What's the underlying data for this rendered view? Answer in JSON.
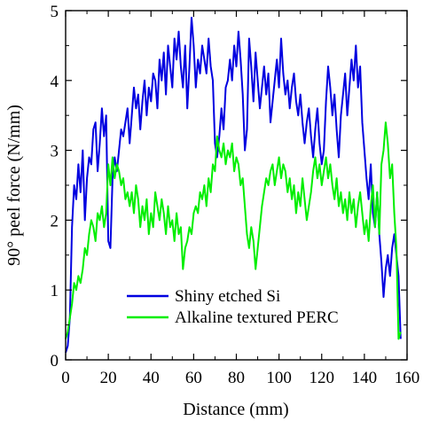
{
  "chart_data": {
    "type": "line",
    "title": "",
    "xlabel": "Distance (mm)",
    "ylabel": "90° peel force (N/mm)",
    "xlim": [
      0,
      160
    ],
    "ylim": [
      0,
      5
    ],
    "xticks": [
      0,
      20,
      40,
      60,
      80,
      100,
      120,
      140,
      160
    ],
    "yticks": [
      0,
      1,
      2,
      3,
      4,
      5
    ],
    "grid": false,
    "legend_position": "lower-center",
    "series": [
      {
        "name": "Shiny etched Si",
        "color": "#0000e0",
        "x": [
          0,
          1,
          2,
          3,
          4,
          5,
          6,
          7,
          8,
          9,
          10,
          11,
          12,
          13,
          14,
          15,
          16,
          17,
          18,
          19,
          20,
          21,
          22,
          23,
          24,
          25,
          26,
          27,
          28,
          29,
          30,
          31,
          32,
          33,
          34,
          35,
          36,
          37,
          38,
          39,
          40,
          41,
          42,
          43,
          44,
          45,
          46,
          47,
          48,
          49,
          50,
          51,
          52,
          53,
          54,
          55,
          56,
          57,
          58,
          59,
          60,
          61,
          62,
          63,
          64,
          65,
          66,
          67,
          68,
          69,
          70,
          71,
          72,
          73,
          74,
          75,
          76,
          77,
          78,
          79,
          80,
          81,
          82,
          83,
          84,
          85,
          86,
          87,
          88,
          89,
          90,
          91,
          92,
          93,
          94,
          95,
          96,
          97,
          98,
          99,
          100,
          101,
          102,
          103,
          104,
          105,
          106,
          107,
          108,
          109,
          110,
          111,
          112,
          113,
          114,
          115,
          116,
          117,
          118,
          119,
          120,
          121,
          122,
          123,
          124,
          125,
          126,
          127,
          128,
          129,
          130,
          131,
          132,
          133,
          134,
          135,
          136,
          137,
          138,
          139,
          140,
          141,
          142,
          143,
          144,
          145,
          146,
          147,
          148,
          149,
          150,
          151,
          152,
          153,
          154,
          155,
          156,
          157
        ],
        "y": [
          0.1,
          0.2,
          0.6,
          1.9,
          2.5,
          2.3,
          2.8,
          2.4,
          3.0,
          2.0,
          2.6,
          2.9,
          2.8,
          3.3,
          3.4,
          2.7,
          3.1,
          3.6,
          3.2,
          3.5,
          1.7,
          1.6,
          2.6,
          2.9,
          2.7,
          3.0,
          3.3,
          3.2,
          3.4,
          3.6,
          3.1,
          3.5,
          3.9,
          3.6,
          3.8,
          3.3,
          3.7,
          4.0,
          3.5,
          3.9,
          3.7,
          4.1,
          4.0,
          3.6,
          4.3,
          4.0,
          4.4,
          3.8,
          4.5,
          4.2,
          3.9,
          4.6,
          4.3,
          4.7,
          4.2,
          3.9,
          4.5,
          3.6,
          4.2,
          4.9,
          4.5,
          3.9,
          4.3,
          4.1,
          4.5,
          4.3,
          4.1,
          4.6,
          4.2,
          4.0,
          3.1,
          2.9,
          3.2,
          3.6,
          3.3,
          3.9,
          4.0,
          4.3,
          4.0,
          4.5,
          4.2,
          4.7,
          4.3,
          3.8,
          3.0,
          3.3,
          4.6,
          4.2,
          3.7,
          4.4,
          4.0,
          3.6,
          3.9,
          4.2,
          3.8,
          4.1,
          3.4,
          3.7,
          4.0,
          4.3,
          3.9,
          4.6,
          4.1,
          3.8,
          4.0,
          3.6,
          3.9,
          4.1,
          3.7,
          3.5,
          3.8,
          3.4,
          3.1,
          3.4,
          3.6,
          3.2,
          2.9,
          3.3,
          3.6,
          3.1,
          2.8,
          3.0,
          3.7,
          4.2,
          3.9,
          3.5,
          3.8,
          3.3,
          2.9,
          3.5,
          3.8,
          4.1,
          3.5,
          3.9,
          4.3,
          4.0,
          4.5,
          3.9,
          4.2,
          3.4,
          3.0,
          2.6,
          2.3,
          2.8,
          2.1,
          1.9,
          2.4,
          1.8,
          1.4,
          0.9,
          1.3,
          1.5,
          1.2,
          1.6,
          1.8,
          1.5,
          1.2,
          0.3
        ]
      },
      {
        "name": "Alkaline textured PERC",
        "color": "#00ee00",
        "x": [
          0,
          1,
          2,
          3,
          4,
          5,
          6,
          7,
          8,
          9,
          10,
          11,
          12,
          13,
          14,
          15,
          16,
          17,
          18,
          19,
          20,
          21,
          22,
          23,
          24,
          25,
          26,
          27,
          28,
          29,
          30,
          31,
          32,
          33,
          34,
          35,
          36,
          37,
          38,
          39,
          40,
          41,
          42,
          43,
          44,
          45,
          46,
          47,
          48,
          49,
          50,
          51,
          52,
          53,
          54,
          55,
          56,
          57,
          58,
          59,
          60,
          61,
          62,
          63,
          64,
          65,
          66,
          67,
          68,
          69,
          70,
          71,
          72,
          73,
          74,
          75,
          76,
          77,
          78,
          79,
          80,
          81,
          82,
          83,
          84,
          85,
          86,
          87,
          88,
          89,
          90,
          91,
          92,
          93,
          94,
          95,
          96,
          97,
          98,
          99,
          100,
          101,
          102,
          103,
          104,
          105,
          106,
          107,
          108,
          109,
          110,
          111,
          112,
          113,
          114,
          115,
          116,
          117,
          118,
          119,
          120,
          121,
          122,
          123,
          124,
          125,
          126,
          127,
          128,
          129,
          130,
          131,
          132,
          133,
          134,
          135,
          136,
          137,
          138,
          139,
          140,
          141,
          142,
          143,
          144,
          145,
          146,
          147,
          148,
          149,
          150,
          151,
          152,
          153,
          154,
          155,
          156,
          157
        ],
        "y": [
          0.3,
          0.4,
          0.6,
          0.8,
          1.1,
          1.0,
          1.2,
          1.1,
          1.3,
          1.6,
          1.5,
          1.8,
          2.0,
          1.9,
          1.7,
          2.1,
          2.0,
          2.2,
          1.9,
          2.1,
          2.8,
          2.5,
          2.9,
          2.6,
          2.8,
          2.7,
          2.5,
          2.6,
          2.3,
          2.4,
          2.2,
          2.4,
          2.1,
          2.5,
          2.3,
          1.9,
          2.2,
          2.0,
          2.3,
          1.8,
          2.1,
          1.9,
          2.4,
          2.2,
          2.0,
          2.3,
          2.1,
          1.8,
          2.2,
          1.9,
          2.0,
          1.7,
          2.1,
          1.8,
          1.9,
          1.3,
          1.6,
          1.7,
          1.9,
          1.8,
          2.1,
          2.2,
          2.1,
          2.4,
          2.3,
          2.5,
          2.2,
          2.6,
          2.4,
          2.8,
          2.7,
          3.2,
          3.0,
          2.9,
          3.1,
          2.8,
          3.0,
          2.9,
          3.1,
          2.7,
          2.9,
          2.8,
          2.5,
          2.6,
          2.2,
          1.8,
          1.6,
          1.9,
          1.7,
          1.3,
          1.6,
          1.9,
          2.2,
          2.4,
          2.6,
          2.5,
          2.7,
          2.8,
          2.5,
          2.7,
          2.9,
          2.6,
          2.8,
          2.7,
          2.4,
          2.6,
          2.3,
          2.5,
          2.1,
          2.4,
          2.2,
          2.6,
          2.3,
          2.0,
          2.2,
          2.4,
          2.7,
          2.9,
          2.6,
          2.8,
          2.5,
          2.7,
          2.9,
          2.6,
          2.8,
          2.5,
          2.3,
          2.6,
          2.2,
          2.4,
          2.1,
          2.3,
          2.0,
          2.4,
          2.1,
          2.3,
          1.9,
          2.2,
          2.4,
          2.1,
          1.8,
          2.0,
          1.7,
          2.2,
          2.5,
          1.9,
          2.4,
          1.8,
          2.8,
          3.0,
          3.4,
          3.1,
          2.6,
          2.8,
          2.1,
          1.6,
          0.3,
          0.4
        ]
      }
    ]
  }
}
